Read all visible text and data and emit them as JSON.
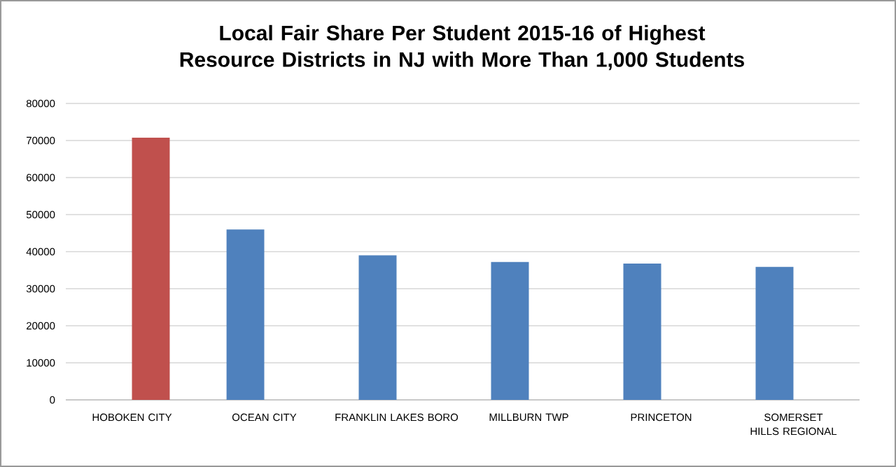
{
  "chart_data": {
    "type": "bar",
    "title": "Local Fair Share Per Student 2015-16 of Highest Resource Districts in NJ with More Than 1,000 Students",
    "categories": [
      "HOBOKEN CITY",
      "OCEAN CITY",
      "FRANKLIN LAKES BORO",
      "MILLBURN TWP",
      "PRINCETON",
      "SOMERSET HILLS REGIONAL"
    ],
    "series": [
      {
        "color": "#4f81bd",
        "values": [
          null,
          46000,
          39000,
          37200,
          36800,
          35900
        ]
      },
      {
        "color": "#c0504d",
        "values": [
          70800,
          null,
          null,
          null,
          null,
          null
        ]
      }
    ],
    "ylim": [
      0,
      80000
    ],
    "yticks": [
      0,
      10000,
      20000,
      30000,
      40000,
      50000,
      60000,
      70000,
      80000
    ],
    "grid": "y"
  }
}
